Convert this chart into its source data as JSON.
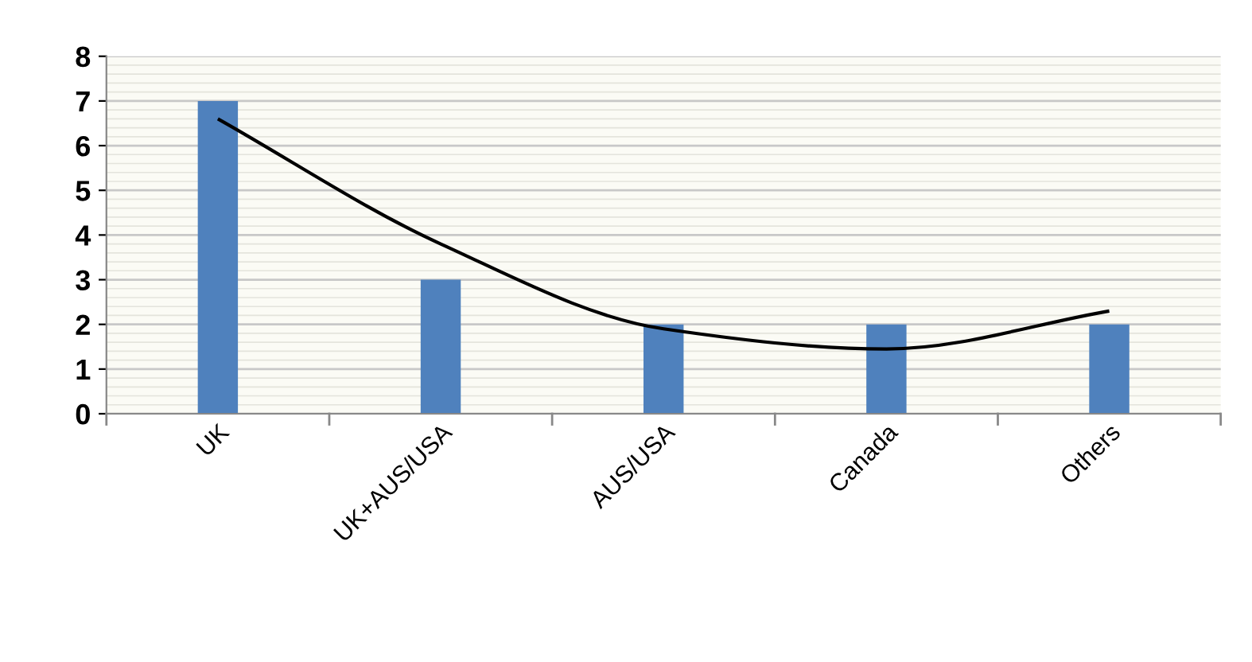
{
  "chart_data": {
    "type": "bar",
    "categories": [
      "UK",
      "UK+AUS/USA",
      "AUS/USA",
      "Canada",
      "Others"
    ],
    "series": [
      {
        "color": "#4f81bd",
        "values": [
          7,
          3,
          2,
          2,
          2
        ]
      },
      {
        "type": "line",
        "color": "#000000",
        "values": [
          6.6,
          3.8,
          1.9,
          1.45,
          2.3
        ]
      }
    ],
    "ylim": [
      0,
      8
    ],
    "yticks": [
      0,
      1,
      2,
      3,
      4,
      5,
      6,
      7,
      8
    ],
    "grid": "y",
    "legend": false,
    "marker": "none",
    "line_style": "solid"
  }
}
